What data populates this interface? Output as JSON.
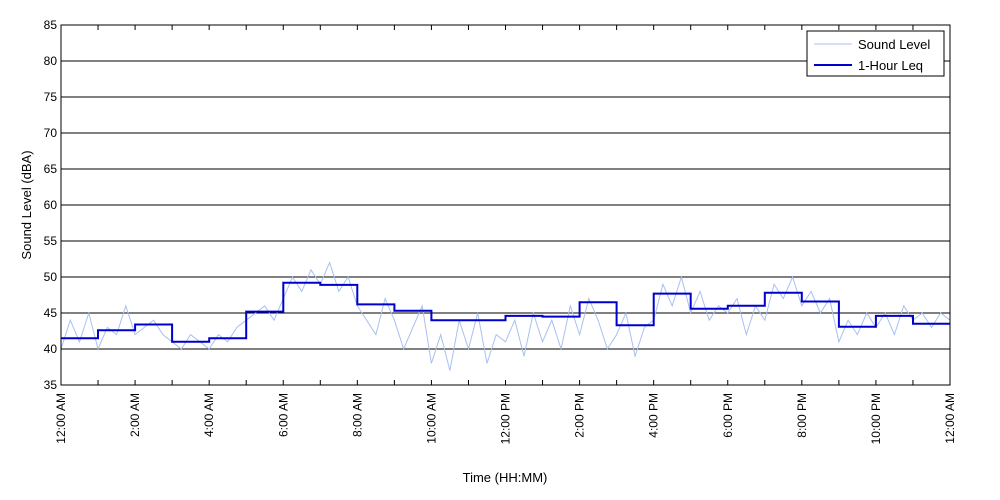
{
  "chart_data": {
    "type": "line",
    "xlabel": "Time (HH:MM)",
    "ylabel": "Sound Level (dBA)",
    "ylim": [
      35,
      85
    ],
    "yticks": [
      35,
      40,
      45,
      50,
      55,
      60,
      65,
      70,
      75,
      80,
      85
    ],
    "xlim_hours": [
      0,
      24
    ],
    "xticks": [
      {
        "hour": 0,
        "label": "12:00 AM"
      },
      {
        "hour": 2,
        "label": "2:00 AM"
      },
      {
        "hour": 4,
        "label": "4:00 AM"
      },
      {
        "hour": 6,
        "label": "6:00 AM"
      },
      {
        "hour": 8,
        "label": "8:00 AM"
      },
      {
        "hour": 10,
        "label": "10:00 AM"
      },
      {
        "hour": 12,
        "label": "12:00 PM"
      },
      {
        "hour": 14,
        "label": "2:00 PM"
      },
      {
        "hour": 16,
        "label": "4:00 PM"
      },
      {
        "hour": 18,
        "label": "6:00 PM"
      },
      {
        "hour": 20,
        "label": "8:00 PM"
      },
      {
        "hour": 22,
        "label": "10:00 PM"
      },
      {
        "hour": 24,
        "label": "12:00 AM"
      }
    ],
    "grid": "horizontal",
    "legend_position": "top-right",
    "series": [
      {
        "name": "Sound Level",
        "color": "#a8c0f0",
        "style": "thin-line",
        "hours": [
          0,
          0.25,
          0.5,
          0.75,
          1,
          1.25,
          1.5,
          1.75,
          2,
          2.25,
          2.5,
          2.75,
          3,
          3.25,
          3.5,
          3.75,
          4,
          4.25,
          4.5,
          4.75,
          5,
          5.25,
          5.5,
          5.75,
          6,
          6.25,
          6.5,
          6.75,
          7,
          7.25,
          7.5,
          7.75,
          8,
          8.25,
          8.5,
          8.75,
          9,
          9.25,
          9.5,
          9.75,
          10,
          10.25,
          10.5,
          10.75,
          11,
          11.25,
          11.5,
          11.75,
          12,
          12.25,
          12.5,
          12.75,
          13,
          13.25,
          13.5,
          13.75,
          14,
          14.25,
          14.5,
          14.75,
          15,
          15.25,
          15.5,
          15.75,
          16,
          16.25,
          16.5,
          16.75,
          17,
          17.25,
          17.5,
          17.75,
          18,
          18.25,
          18.5,
          18.75,
          19,
          19.25,
          19.5,
          19.75,
          20,
          20.25,
          20.5,
          20.75,
          21,
          21.25,
          21.5,
          21.75,
          22,
          22.25,
          22.5,
          22.75,
          23,
          23.25,
          23.5,
          23.75,
          24
        ],
        "values": [
          40,
          44,
          41,
          45,
          40,
          43,
          42,
          46,
          42,
          43,
          44,
          42,
          41,
          40,
          42,
          41,
          40,
          42,
          41,
          43,
          44,
          45,
          46,
          44,
          47,
          50,
          48,
          51,
          49,
          52,
          48,
          50,
          46,
          44,
          42,
          47,
          44,
          40,
          43,
          46,
          38,
          42,
          37,
          44,
          40,
          45,
          38,
          42,
          41,
          44,
          39,
          45,
          41,
          44,
          40,
          46,
          42,
          47,
          44,
          40,
          42,
          45,
          39,
          43,
          44,
          49,
          46,
          50,
          45,
          48,
          44,
          46,
          45,
          47,
          42,
          46,
          44,
          49,
          47,
          50,
          46,
          48,
          45,
          47,
          41,
          44,
          42,
          45,
          43,
          45,
          42,
          46,
          44,
          45,
          43,
          45,
          44
        ]
      },
      {
        "name": "1-Hour Leq",
        "color": "#0000cc",
        "style": "step",
        "step_hours": [
          0,
          1,
          2,
          3,
          4,
          5,
          6,
          7,
          8,
          9,
          10,
          11,
          12,
          13,
          14,
          15,
          16,
          17,
          18,
          19,
          20,
          21,
          22,
          23
        ],
        "values": [
          41.5,
          42.6,
          43.4,
          41,
          41.5,
          45.2,
          49.2,
          48.9,
          46.2,
          45.3,
          44,
          44,
          44.6,
          44.5,
          46.5,
          43.3,
          47.7,
          45.6,
          46,
          47.8,
          46.6,
          43.1,
          44.6,
          43.5
        ]
      }
    ]
  }
}
